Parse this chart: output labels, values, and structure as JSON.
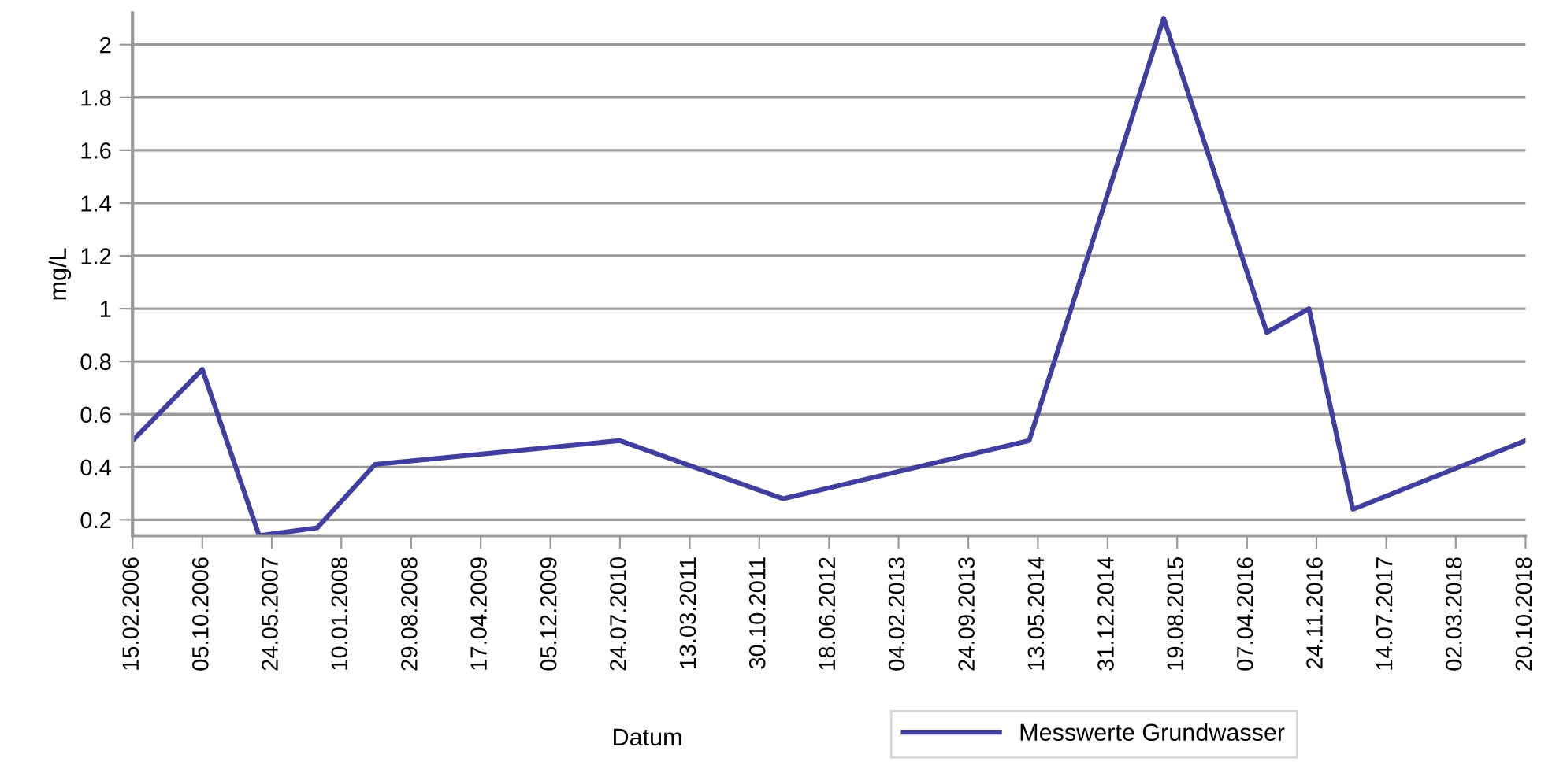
{
  "chart_data": {
    "type": "line",
    "xlabel": "Datum",
    "ylabel": "mg/L",
    "x": [
      "2006-02-15",
      "2006-10-05",
      "2007-04-12",
      "2007-10-22",
      "2008-05-01",
      "2010-07-24",
      "2012-01-18",
      "2014-04-14",
      "2015-07-05",
      "2016-06-12",
      "2016-10-30",
      "2017-03-25",
      "2018-10-20"
    ],
    "series": [
      {
        "name": "Messwerte Grundwasser",
        "color": "#3f3f9f",
        "values": [
          0.5,
          0.77,
          0.14,
          0.17,
          0.41,
          0.5,
          0.28,
          0.5,
          2.1,
          0.91,
          1.0,
          0.24,
          0.5
        ]
      }
    ],
    "xlim": [
      "2006-02-15",
      "2018-10-20"
    ],
    "ylim": [
      0.14,
      2.12
    ],
    "xticks": [
      {
        "value": "2006-02-15",
        "label": "15.02.2006"
      },
      {
        "value": "2006-10-05",
        "label": "05.10.2006"
      },
      {
        "value": "2007-05-24",
        "label": "24.05.2007"
      },
      {
        "value": "2008-01-10",
        "label": "10.01.2008"
      },
      {
        "value": "2008-08-29",
        "label": "29.08.2008"
      },
      {
        "value": "2009-04-17",
        "label": "17.04.2009"
      },
      {
        "value": "2009-12-05",
        "label": "05.12.2009"
      },
      {
        "value": "2010-07-24",
        "label": "24.07.2010"
      },
      {
        "value": "2011-03-13",
        "label": "13.03.2011"
      },
      {
        "value": "2011-10-30",
        "label": "30.10.2011"
      },
      {
        "value": "2012-06-18",
        "label": "18.06.2012"
      },
      {
        "value": "2013-02-04",
        "label": "04.02.2013"
      },
      {
        "value": "2013-09-24",
        "label": "24.09.2013"
      },
      {
        "value": "2014-05-13",
        "label": "13.05.2014"
      },
      {
        "value": "2014-12-31",
        "label": "31.12.2014"
      },
      {
        "value": "2015-08-19",
        "label": "19.08.2015"
      },
      {
        "value": "2016-04-07",
        "label": "07.04.2016"
      },
      {
        "value": "2016-11-24",
        "label": "24.11.2016"
      },
      {
        "value": "2017-07-14",
        "label": "14.07.2017"
      },
      {
        "value": "2018-03-02",
        "label": "02.03.2018"
      },
      {
        "value": "2018-10-20",
        "label": "20.10.2018"
      }
    ],
    "yticks": [
      0.2,
      0.4,
      0.6,
      0.8,
      1,
      1.2,
      1.4,
      1.6,
      1.8,
      2
    ],
    "grid": "y",
    "legend": "bottom",
    "marker": "none",
    "line_style": "solid"
  }
}
